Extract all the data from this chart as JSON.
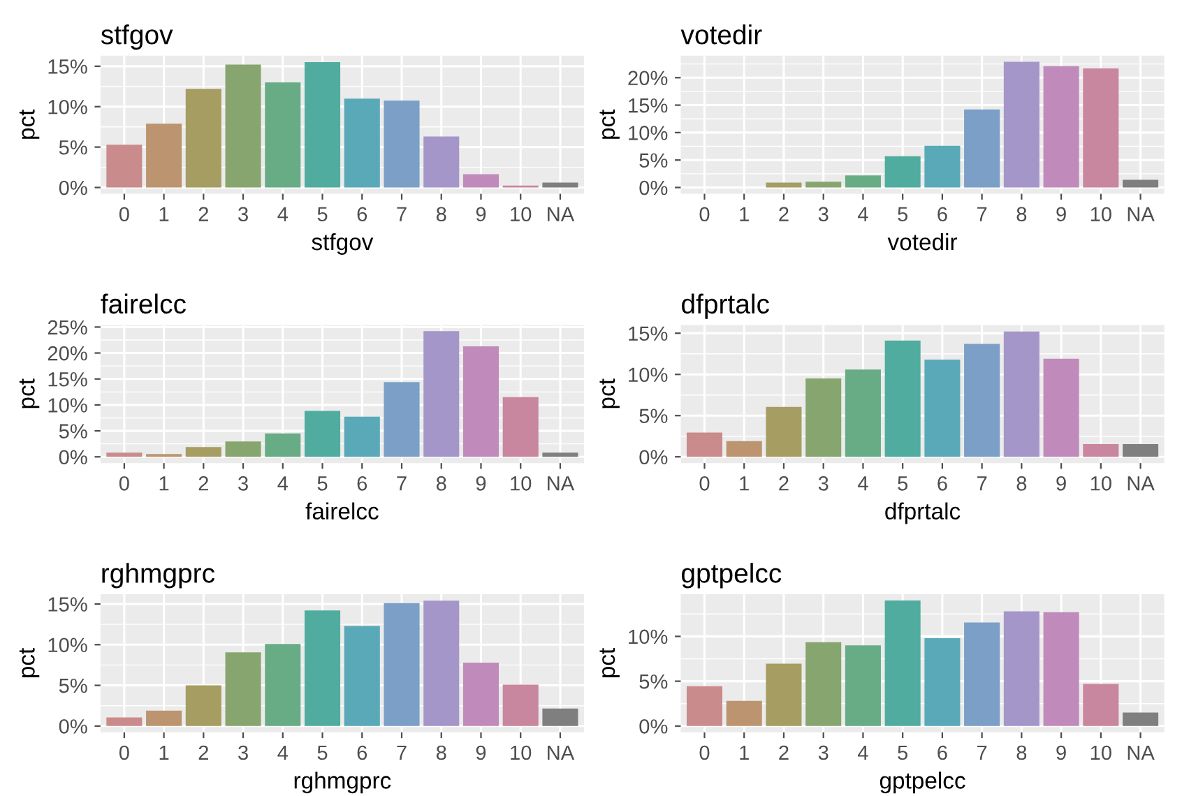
{
  "chart_data": [
    {
      "type": "bar",
      "title": "stfgov",
      "xlabel": "stfgov",
      "ylabel": "pct",
      "categories": [
        "0",
        "1",
        "2",
        "3",
        "4",
        "5",
        "6",
        "7",
        "8",
        "9",
        "10",
        "NA"
      ],
      "values": [
        5.3,
        7.9,
        12.2,
        15.2,
        13.0,
        15.5,
        11.0,
        10.75,
        6.3,
        1.65,
        0.25,
        0.6
      ],
      "colors": [
        "#c98b8b",
        "#bc9570",
        "#a59d62",
        "#87a56e",
        "#67ac85",
        "#50ac9f",
        "#5aa9b9",
        "#7b9fc6",
        "#a596c9",
        "#c08bbb",
        "#c9869f",
        "#7f7f7f"
      ],
      "ylim": [
        -0.78,
        16.3
      ],
      "yticks": [
        {
          "value": 0,
          "label": "0%"
        },
        {
          "value": 5,
          "label": "5%"
        },
        {
          "value": 10,
          "label": "10%"
        },
        {
          "value": 15,
          "label": "15%"
        }
      ],
      "grid": true
    },
    {
      "type": "bar",
      "title": "votedir",
      "xlabel": "votedir",
      "ylabel": "pct",
      "categories": [
        "0",
        "1",
        "2",
        "3",
        "4",
        "5",
        "6",
        "7",
        "8",
        "9",
        "10",
        "NA"
      ],
      "values": [
        0,
        0,
        0.9,
        1.05,
        2.2,
        5.7,
        7.6,
        14.2,
        22.9,
        22.1,
        21.7,
        1.4
      ],
      "colors": [
        "#c98b8b",
        "#bc9570",
        "#a59d62",
        "#87a56e",
        "#67ac85",
        "#50ac9f",
        "#5aa9b9",
        "#7b9fc6",
        "#a596c9",
        "#c08bbb",
        "#c9869f",
        "#7f7f7f"
      ],
      "ylim": [
        -1.15,
        24.0
      ],
      "yticks": [
        {
          "value": 0,
          "label": "0%"
        },
        {
          "value": 5,
          "label": "5%"
        },
        {
          "value": 10,
          "label": "10%"
        },
        {
          "value": 15,
          "label": "15%"
        },
        {
          "value": 20,
          "label": "20%"
        }
      ],
      "grid": true
    },
    {
      "type": "bar",
      "title": "fairelcc",
      "xlabel": "fairelcc",
      "ylabel": "pct",
      "categories": [
        "0",
        "1",
        "2",
        "3",
        "4",
        "5",
        "6",
        "7",
        "8",
        "9",
        "10",
        "NA"
      ],
      "values": [
        0.8,
        0.55,
        1.9,
        2.95,
        4.5,
        8.85,
        7.75,
        14.4,
        24.2,
        21.3,
        11.5,
        0.8
      ],
      "colors": [
        "#c98b8b",
        "#bc9570",
        "#a59d62",
        "#87a56e",
        "#67ac85",
        "#50ac9f",
        "#5aa9b9",
        "#7b9fc6",
        "#a596c9",
        "#c08bbb",
        "#c9869f",
        "#7f7f7f"
      ],
      "ylim": [
        -1.2,
        25.4
      ],
      "yticks": [
        {
          "value": 0,
          "label": "0%"
        },
        {
          "value": 5,
          "label": "5%"
        },
        {
          "value": 10,
          "label": "10%"
        },
        {
          "value": 15,
          "label": "15%"
        },
        {
          "value": 20,
          "label": "20%"
        },
        {
          "value": 25,
          "label": "25%"
        }
      ],
      "grid": true
    },
    {
      "type": "bar",
      "title": "dfprtalc",
      "xlabel": "dfprtalc",
      "ylabel": "pct",
      "categories": [
        "0",
        "1",
        "2",
        "3",
        "4",
        "5",
        "6",
        "7",
        "8",
        "9",
        "10",
        "NA"
      ],
      "values": [
        2.95,
        1.9,
        6.05,
        9.5,
        10.6,
        14.1,
        11.8,
        13.7,
        15.2,
        11.9,
        1.55,
        1.55
      ],
      "colors": [
        "#c98b8b",
        "#bc9570",
        "#a59d62",
        "#87a56e",
        "#67ac85",
        "#50ac9f",
        "#5aa9b9",
        "#7b9fc6",
        "#a596c9",
        "#c08bbb",
        "#c9869f",
        "#7f7f7f"
      ],
      "ylim": [
        -0.76,
        16.0
      ],
      "yticks": [
        {
          "value": 0,
          "label": "0%"
        },
        {
          "value": 5,
          "label": "5%"
        },
        {
          "value": 10,
          "label": "10%"
        },
        {
          "value": 15,
          "label": "15%"
        }
      ],
      "grid": true
    },
    {
      "type": "bar",
      "title": "rghmgprc",
      "xlabel": "rghmgprc",
      "ylabel": "pct",
      "categories": [
        "0",
        "1",
        "2",
        "3",
        "4",
        "5",
        "6",
        "7",
        "8",
        "9",
        "10",
        "NA"
      ],
      "values": [
        1.05,
        1.9,
        5.0,
        9.05,
        10.1,
        14.2,
        12.3,
        15.1,
        15.4,
        7.8,
        5.1,
        2.15
      ],
      "colors": [
        "#c98b8b",
        "#bc9570",
        "#a59d62",
        "#87a56e",
        "#67ac85",
        "#50ac9f",
        "#5aa9b9",
        "#7b9fc6",
        "#a596c9",
        "#c08bbb",
        "#c9869f",
        "#7f7f7f"
      ],
      "ylim": [
        -0.77,
        16.2
      ],
      "yticks": [
        {
          "value": 0,
          "label": "0%"
        },
        {
          "value": 5,
          "label": "5%"
        },
        {
          "value": 10,
          "label": "10%"
        },
        {
          "value": 15,
          "label": "15%"
        }
      ],
      "grid": true
    },
    {
      "type": "bar",
      "title": "gptpelcc",
      "xlabel": "gptpelcc",
      "ylabel": "pct",
      "categories": [
        "0",
        "1",
        "2",
        "3",
        "4",
        "5",
        "6",
        "7",
        "8",
        "9",
        "10",
        "NA"
      ],
      "values": [
        4.45,
        2.8,
        6.95,
        9.35,
        9.0,
        14.0,
        9.8,
        11.55,
        12.8,
        12.7,
        4.7,
        1.5
      ],
      "colors": [
        "#c98b8b",
        "#bc9570",
        "#a59d62",
        "#87a56e",
        "#67ac85",
        "#50ac9f",
        "#5aa9b9",
        "#7b9fc6",
        "#a596c9",
        "#c08bbb",
        "#c9869f",
        "#7f7f7f"
      ],
      "ylim": [
        -0.7,
        14.7
      ],
      "yticks": [
        {
          "value": 0,
          "label": "0%"
        },
        {
          "value": 5,
          "label": "5%"
        },
        {
          "value": 10,
          "label": "10%"
        }
      ],
      "grid": true
    }
  ]
}
